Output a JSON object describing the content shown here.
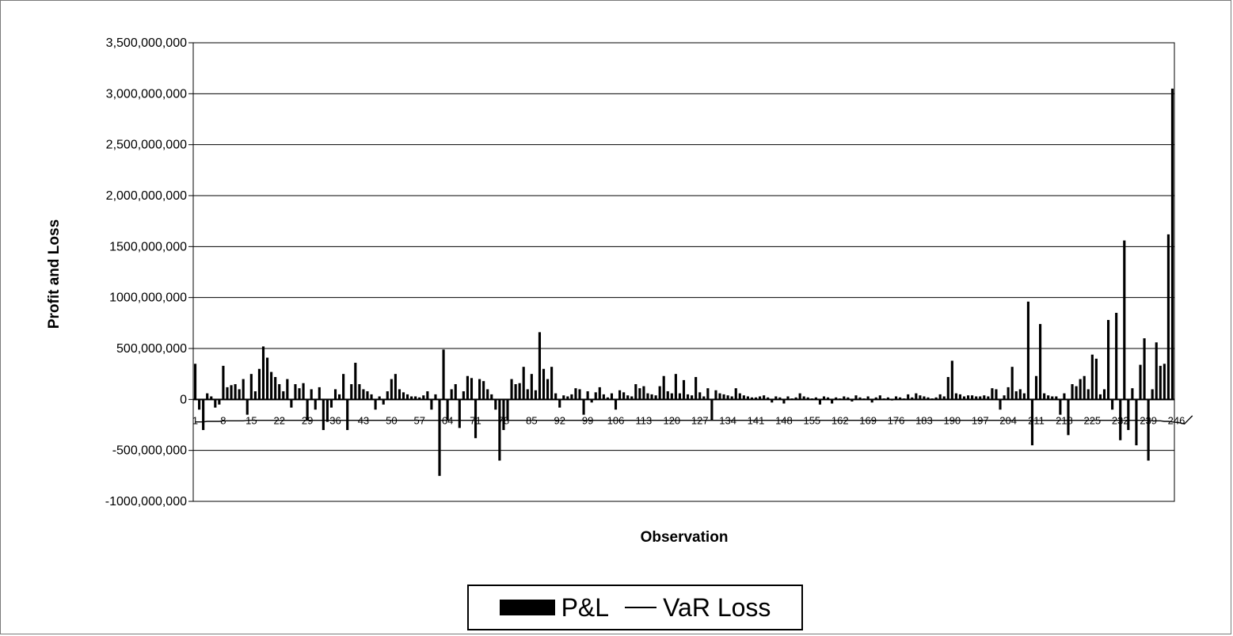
{
  "chart_data": {
    "type": "bar",
    "title": "",
    "xlabel": "Observation",
    "ylabel": "Profit and Loss",
    "ylim": [
      -1000000000,
      3500000000
    ],
    "y_ticks": [
      3500000000,
      3000000000,
      2500000000,
      2000000000,
      1500000000,
      1000000000,
      500000000,
      0,
      -500000000,
      -1000000000
    ],
    "y_tick_labels": [
      "3,500,000,000",
      "3,000,000,000",
      "2,500,000,000",
      "2,000,000,000",
      "1500,000,000",
      "1000,000,000",
      "500,000,000",
      "0",
      "-500,000,000",
      "-1000,000,000"
    ],
    "x_tick_labels": [
      "1",
      "8",
      "15",
      "22",
      "29",
      "36",
      "43",
      "50",
      "57",
      "64",
      "71",
      "78",
      "85",
      "92",
      "99",
      "106",
      "113",
      "120",
      "127",
      "134",
      "141",
      "148",
      "155",
      "162",
      "169",
      "176",
      "183",
      "190",
      "197",
      "204",
      "211",
      "218",
      "225",
      "232",
      "239",
      "246"
    ],
    "grid": true,
    "legend_position": "bottom",
    "series": [
      {
        "name": "P&L",
        "type": "bar",
        "color": "#000000",
        "values": [
          350000000,
          -100000000,
          -300000000,
          60000000,
          30000000,
          -80000000,
          -50000000,
          330000000,
          120000000,
          140000000,
          150000000,
          100000000,
          200000000,
          -150000000,
          250000000,
          80000000,
          300000000,
          520000000,
          410000000,
          270000000,
          220000000,
          150000000,
          80000000,
          200000000,
          -80000000,
          150000000,
          110000000,
          160000000,
          -200000000,
          100000000,
          -100000000,
          120000000,
          -300000000,
          -220000000,
          -80000000,
          100000000,
          50000000,
          250000000,
          -300000000,
          150000000,
          360000000,
          150000000,
          100000000,
          80000000,
          50000000,
          -100000000,
          30000000,
          -50000000,
          80000000,
          200000000,
          250000000,
          100000000,
          70000000,
          50000000,
          30000000,
          30000000,
          20000000,
          40000000,
          80000000,
          -100000000,
          50000000,
          -750000000,
          490000000,
          -200000000,
          100000000,
          150000000,
          -280000000,
          80000000,
          230000000,
          210000000,
          -380000000,
          200000000,
          180000000,
          100000000,
          50000000,
          -100000000,
          -600000000,
          -300000000,
          -200000000,
          200000000,
          150000000,
          160000000,
          320000000,
          100000000,
          250000000,
          90000000,
          660000000,
          300000000,
          200000000,
          320000000,
          60000000,
          -80000000,
          40000000,
          30000000,
          50000000,
          110000000,
          100000000,
          -150000000,
          80000000,
          -30000000,
          70000000,
          120000000,
          50000000,
          20000000,
          60000000,
          -100000000,
          90000000,
          70000000,
          40000000,
          30000000,
          150000000,
          110000000,
          130000000,
          60000000,
          50000000,
          40000000,
          130000000,
          230000000,
          80000000,
          60000000,
          250000000,
          60000000,
          190000000,
          50000000,
          40000000,
          220000000,
          70000000,
          30000000,
          110000000,
          -200000000,
          90000000,
          60000000,
          50000000,
          40000000,
          30000000,
          110000000,
          60000000,
          40000000,
          30000000,
          20000000,
          20000000,
          30000000,
          40000000,
          20000000,
          -30000000,
          30000000,
          20000000,
          -40000000,
          30000000,
          10000000,
          20000000,
          60000000,
          30000000,
          20000000,
          10000000,
          20000000,
          -50000000,
          30000000,
          20000000,
          -40000000,
          20000000,
          10000000,
          30000000,
          20000000,
          -20000000,
          40000000,
          20000000,
          10000000,
          30000000,
          -30000000,
          20000000,
          40000000,
          10000000,
          20000000,
          -10000000,
          30000000,
          20000000,
          10000000,
          50000000,
          20000000,
          60000000,
          40000000,
          30000000,
          20000000,
          10000000,
          20000000,
          50000000,
          30000000,
          220000000,
          380000000,
          60000000,
          50000000,
          30000000,
          40000000,
          40000000,
          30000000,
          30000000,
          40000000,
          30000000,
          110000000,
          100000000,
          -100000000,
          40000000,
          120000000,
          320000000,
          80000000,
          100000000,
          60000000,
          960000000,
          -450000000,
          230000000,
          740000000,
          60000000,
          40000000,
          30000000,
          30000000,
          -150000000,
          60000000,
          -350000000,
          150000000,
          130000000,
          200000000,
          230000000,
          100000000,
          440000000,
          400000000,
          50000000,
          100000000,
          780000000,
          -100000000,
          850000000,
          -400000000,
          1560000000,
          -300000000,
          110000000,
          -450000000,
          340000000,
          600000000,
          -600000000,
          100000000,
          560000000,
          330000000,
          350000000,
          1620000000,
          3050000000
        ]
      },
      {
        "name": "VaR Loss",
        "type": "line",
        "color": "#000000",
        "values": [
          -220000000,
          -220000000,
          -220000000,
          -215000000,
          -215000000,
          -215000000,
          -215000000,
          -210000000,
          -210000000,
          -210000000,
          -210000000,
          -210000000,
          -210000000,
          -205000000,
          -205000000,
          -205000000,
          -205000000,
          -205000000,
          -205000000,
          -205000000,
          -205000000,
          -205000000,
          -205000000,
          -205000000,
          -205000000,
          -205000000,
          -205000000,
          -205000000,
          -205000000,
          -205000000,
          -205000000,
          -205000000,
          -205000000,
          -205000000,
          -205000000,
          -205000000,
          -205000000,
          -205000000,
          -205000000,
          -205000000,
          -205000000,
          -205000000,
          -205000000,
          -205000000,
          -205000000,
          -205000000,
          -205000000,
          -205000000,
          -205000000,
          -205000000,
          -205000000,
          -205000000,
          -205000000,
          -205000000,
          -205000000,
          -205000000,
          -205000000,
          -205000000,
          -205000000,
          -205000000,
          -205000000,
          -205000000,
          -205000000,
          -205000000,
          -205000000,
          -205000000,
          -205000000,
          -205000000,
          -205000000,
          -205000000,
          -205000000,
          -205000000,
          -205000000,
          -205000000,
          -205000000,
          -205000000,
          -205000000,
          -205000000,
          -205000000,
          -205000000,
          -205000000,
          -205000000,
          -205000000,
          -205000000,
          -205000000,
          -205000000,
          -205000000,
          -205000000,
          -205000000,
          -205000000,
          -205000000,
          -205000000,
          -205000000,
          -205000000,
          -205000000,
          -205000000,
          -205000000,
          -205000000,
          -205000000,
          -205000000,
          -205000000,
          -205000000,
          -205000000,
          -205000000,
          -205000000,
          -205000000,
          -205000000,
          -205000000,
          -205000000,
          -205000000,
          -205000000,
          -205000000,
          -205000000,
          -205000000,
          -205000000,
          -205000000,
          -205000000,
          -205000000,
          -205000000,
          -205000000,
          -205000000,
          -205000000,
          -205000000,
          -205000000,
          -205000000,
          -205000000,
          -205000000,
          -205000000,
          -205000000,
          -205000000,
          -205000000,
          -205000000,
          -205000000,
          -205000000,
          -205000000,
          -205000000,
          -205000000,
          -205000000,
          -205000000,
          -205000000,
          -205000000,
          -205000000,
          -205000000,
          -205000000,
          -205000000,
          -205000000,
          -205000000,
          -205000000,
          -205000000,
          -205000000,
          -205000000,
          -205000000,
          -205000000,
          -205000000,
          -205000000,
          -205000000,
          -205000000,
          -205000000,
          -205000000,
          -205000000,
          -205000000,
          -205000000,
          -205000000,
          -205000000,
          -205000000,
          -205000000,
          -205000000,
          -205000000,
          -205000000,
          -205000000,
          -205000000,
          -205000000,
          -205000000,
          -205000000,
          -205000000,
          -205000000,
          -205000000,
          -205000000,
          -205000000,
          -205000000,
          -205000000,
          -205000000,
          -205000000,
          -205000000,
          -205000000,
          -205000000,
          -205000000,
          -205000000,
          -205000000,
          -205000000,
          -205000000,
          -205000000,
          -205000000,
          -205000000,
          -205000000,
          -205000000,
          -205000000,
          -205000000,
          -205000000,
          -205000000,
          -205000000,
          -205000000,
          -205000000,
          -205000000,
          -205000000,
          -205000000,
          -205000000,
          -205000000,
          -205000000,
          -205000000,
          -205000000,
          -205000000,
          -205000000,
          -205000000,
          -205000000,
          -205000000,
          -205000000,
          -205000000,
          -205000000,
          -205000000,
          -205000000,
          -205000000,
          -205000000,
          -205000000,
          -205000000,
          -205000000,
          -205000000,
          -205000000,
          -205000000,
          -205000000,
          -205000000,
          -205000000,
          -205000000,
          -205000000,
          -205000000,
          -205000000,
          -205000000,
          -205000000,
          -205000000,
          -210000000,
          -210000000,
          -210000000,
          -215000000,
          -215000000,
          -220000000,
          -225000000,
          -230000000,
          -240000000,
          -200000000,
          -160000000
        ]
      }
    ]
  }
}
